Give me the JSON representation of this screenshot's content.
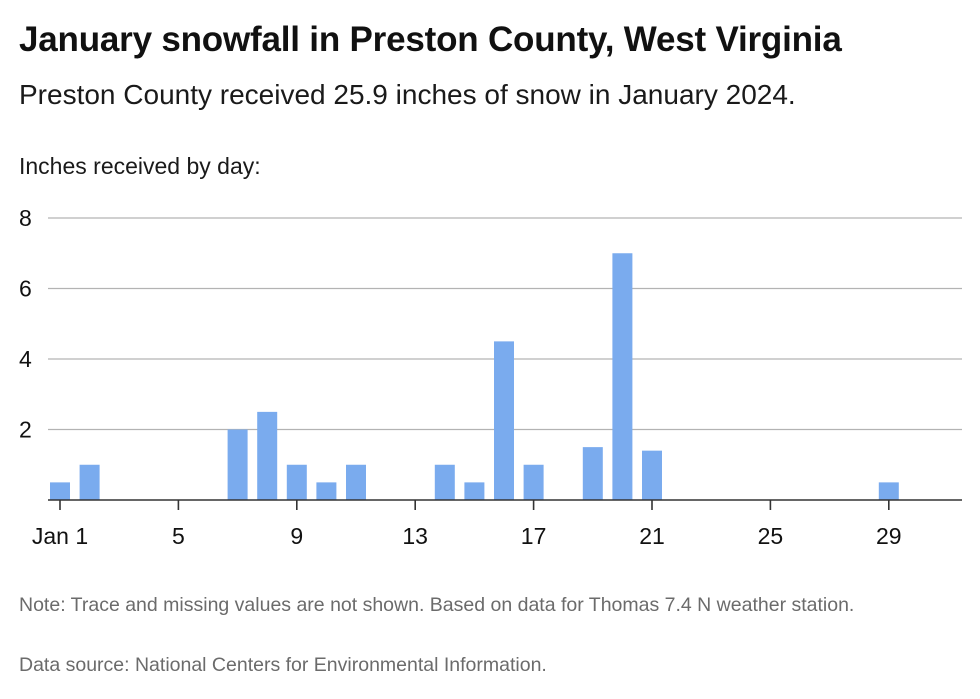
{
  "header": {
    "title": "January snowfall in Preston County, West Virginia",
    "subtitle": "Preston County received 25.9 inches of snow in January 2024."
  },
  "footer": {
    "note": "Note: Trace and missing values are not shown. Based on data for Thomas 7.4 N weather station.",
    "source": "Data source: National Centers for Environmental Information."
  },
  "chart_data": {
    "type": "bar",
    "title": "January snowfall in Preston County, West Virginia",
    "subtitle": "Preston County received 25.9 inches of snow in January 2024.",
    "ylabel": "Inches received by day:",
    "xlabel": "",
    "bar_color": "#7aabee",
    "grid": true,
    "ylim": [
      0,
      8
    ],
    "yticks": [
      2,
      4,
      6,
      8
    ],
    "x_domain": [
      1,
      31
    ],
    "xticks": [
      {
        "day": 1,
        "label": "Jan 1"
      },
      {
        "day": 5,
        "label": "5"
      },
      {
        "day": 9,
        "label": "9"
      },
      {
        "day": 13,
        "label": "13"
      },
      {
        "day": 17,
        "label": "17"
      },
      {
        "day": 21,
        "label": "21"
      },
      {
        "day": 25,
        "label": "25"
      },
      {
        "day": 29,
        "label": "29"
      }
    ],
    "days": [
      1,
      2,
      7,
      8,
      9,
      10,
      11,
      14,
      15,
      16,
      17,
      19,
      20,
      21,
      29
    ],
    "values": [
      0.5,
      1.0,
      2.0,
      2.5,
      1.0,
      0.5,
      1.0,
      1.0,
      0.5,
      4.5,
      1.0,
      1.5,
      7.0,
      1.4,
      0.5
    ]
  }
}
